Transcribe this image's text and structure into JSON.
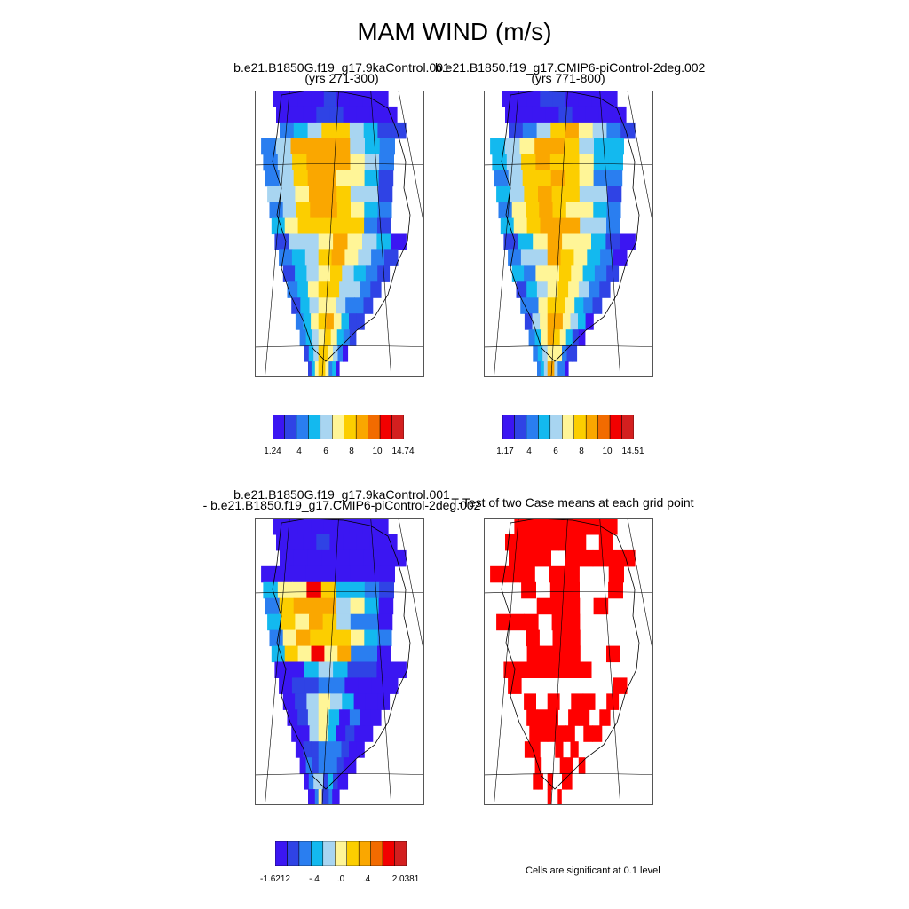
{
  "title": "MAM WIND (m/s)",
  "chart_data": [
    {
      "type": "heatmap",
      "title": "b.e21.B1850G.f19_g17.9kaControl.001",
      "subtitle": "(yrs 271-300)",
      "legend": {
        "colors": [
          "#3b16f2",
          "#2f43e5",
          "#2a7ef0",
          "#13b9ef",
          "#a8d5f1",
          "#fff597",
          "#fcce00",
          "#faa700",
          "#f26b00",
          "#f20000",
          "#d31f1f"
        ],
        "labels": [
          "1.24",
          "4",
          "6",
          "8",
          "10",
          "14.74"
        ]
      }
    },
    {
      "type": "heatmap",
      "title": "b.e21.B1850.f19_g17.CMIP6-piControl-2deg.002",
      "subtitle": "(yrs 771-800)",
      "legend": {
        "colors": [
          "#3b16f2",
          "#2f43e5",
          "#2a7ef0",
          "#13b9ef",
          "#a8d5f1",
          "#fff597",
          "#fcce00",
          "#faa700",
          "#f26b00",
          "#f20000",
          "#d31f1f"
        ],
        "labels": [
          "1.17",
          "4",
          "6",
          "8",
          "10",
          "14.51"
        ]
      }
    },
    {
      "type": "heatmap",
      "title": "b.e21.B1850G.f19_g17.9kaControl.001",
      "subtitle": "- b.e21.B1850.f19_g17.CMIP6-piControl-2deg.002",
      "legend": {
        "colors": [
          "#3b16f2",
          "#2f43e5",
          "#2a7ef0",
          "#13b9ef",
          "#a8d5f1",
          "#fff597",
          "#fcce00",
          "#faa700",
          "#f26b00",
          "#f20000",
          "#d31f1f"
        ],
        "labels": [
          "-1.6212",
          "-.4",
          ".0",
          ".4",
          "2.0381"
        ]
      }
    },
    {
      "type": "heatmap",
      "title": "T-Test of two Case means at each grid point",
      "note": "Cells are significant at 0.1 level",
      "significant_color": "#ff0000"
    }
  ]
}
